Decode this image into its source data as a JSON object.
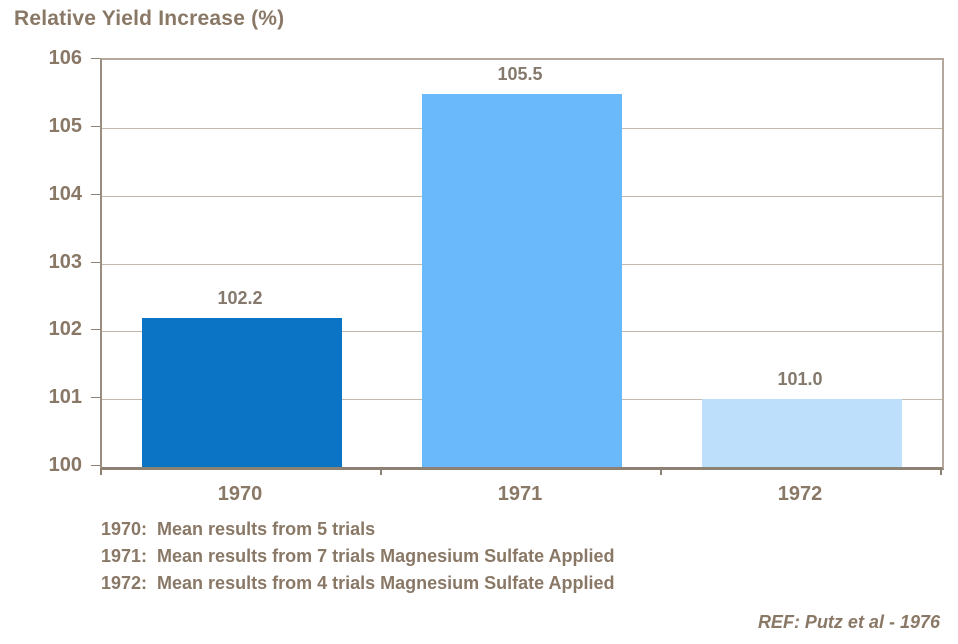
{
  "title": "Relative Yield Increase (%)",
  "chart_data": {
    "type": "bar",
    "title": "Relative Yield Increase (%)",
    "categories": [
      "1970",
      "1971",
      "1972"
    ],
    "values": [
      102.2,
      105.5,
      101.0
    ],
    "value_labels": [
      "102.2",
      "105.5",
      "101.0"
    ],
    "bar_colors": [
      "#0b74c4",
      "#6ab9fb",
      "#bddffb"
    ],
    "xlabel": "",
    "ylabel": "Relative Yield Increase (%)",
    "ylim": [
      100,
      106
    ],
    "yticks": [
      100,
      101,
      102,
      103,
      104,
      105,
      106
    ],
    "grid": true,
    "legend_position": "none",
    "annotations": [
      "1970:  Mean results from 5 trials",
      "1971:  Mean results from 7 trials Magnesium Sulfate Applied",
      "1972:  Mean results from 4 trials Magnesium Sulfate Applied",
      "REF: Putz et al - 1976"
    ]
  },
  "footnotes": [
    "1970:  Mean results from 5 trials",
    "1971:  Mean results from 7 trials Magnesium Sulfate Applied",
    "1972:  Mean results from 4 trials Magnesium Sulfate Applied"
  ],
  "reference": "REF: Putz et al - 1976",
  "colors": {
    "text_brown": "#8a7866",
    "value_label_brown": "#84796c",
    "grid": "#c3b9ad",
    "axis_tick": "#8d8174",
    "background": "#ffffff"
  }
}
